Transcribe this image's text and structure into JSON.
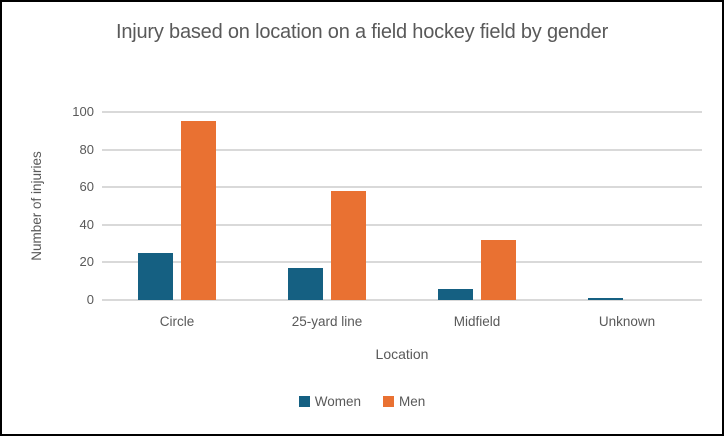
{
  "chart": {
    "title": "Injury based on location on a field hockey field by gender",
    "x_axis_title": "Location",
    "y_axis_title": "Number of injuries"
  },
  "chart_data": {
    "type": "bar",
    "title": "Injury based on location on a field hockey field by gender",
    "categories": [
      "Circle",
      "25-yard line",
      "Midfield",
      "Unknown"
    ],
    "series": [
      {
        "name": "Women",
        "color": "#156082",
        "values": [
          25,
          17,
          6,
          1
        ]
      },
      {
        "name": "Men",
        "color": "#e97132",
        "values": [
          95,
          58,
          32,
          0
        ]
      }
    ],
    "xlabel": "Location",
    "ylabel": "Number of injuries",
    "ylim": [
      0,
      100
    ],
    "y_ticks": [
      0,
      20,
      40,
      60,
      80,
      100
    ],
    "grid": true,
    "legend_position": "bottom"
  },
  "colors": {
    "women": "#156082",
    "men": "#e97132",
    "gridline": "#d9d9d9",
    "text": "#595959",
    "border": "#000000",
    "background": "#ffffff"
  }
}
